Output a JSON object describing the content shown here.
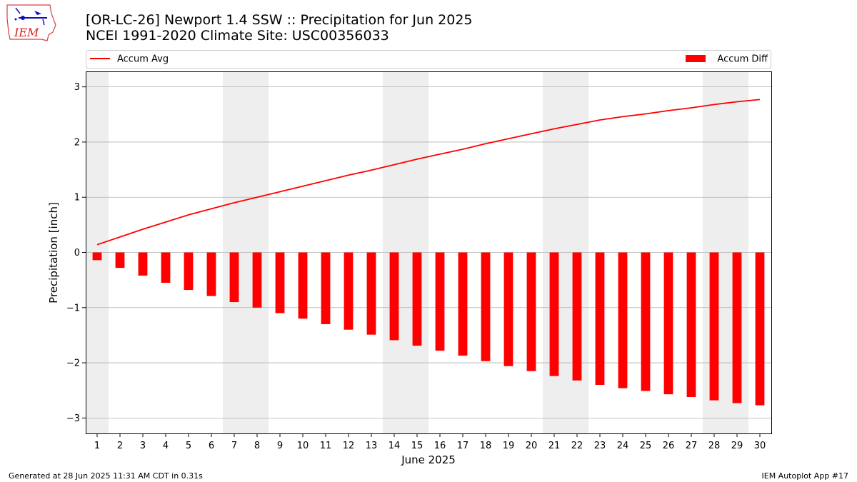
{
  "header": {
    "title_line1": "[OR-LC-26] Newport 1.4 SSW :: Precipitation for Jun 2025",
    "title_line2": "NCEI 1991-2020 Climate Site: USC00356033"
  },
  "logo": {
    "text": "IEM",
    "icon": "iem-iowa-state-logo"
  },
  "footer": {
    "left": "Generated at 28 Jun 2025 11:31 AM CDT in 0.31s",
    "right": "IEM Autoplot App #17"
  },
  "colors": {
    "series": "#ff0000",
    "weekend_band": "#eeeeee",
    "grid": "#b0b0b0"
  },
  "chart_data": {
    "type": "bar",
    "xlabel": "June 2025",
    "ylabel": "Precipitation [inch]",
    "ylim": [
      -3.28,
      3.28
    ],
    "yticks": [
      3,
      2,
      1,
      0,
      -1,
      -2,
      -3
    ],
    "ytick_labels": [
      "3",
      "2",
      "1",
      "0",
      "−1",
      "−2",
      "−3"
    ],
    "grid": "horizontal",
    "legend": [
      {
        "label": "Accum Avg",
        "kind": "line",
        "position": "top-left"
      },
      {
        "label": "Accum Diff",
        "kind": "bar",
        "position": "top-right"
      }
    ],
    "categories": [
      "1",
      "2",
      "3",
      "4",
      "5",
      "6",
      "7",
      "8",
      "9",
      "10",
      "11",
      "12",
      "13",
      "14",
      "15",
      "16",
      "17",
      "18",
      "19",
      "20",
      "21",
      "22",
      "23",
      "24",
      "25",
      "26",
      "27",
      "28",
      "29",
      "30"
    ],
    "weekend_days": [
      1,
      7,
      8,
      14,
      15,
      21,
      22,
      28,
      29
    ],
    "series": [
      {
        "name": "Accum Avg",
        "type": "line",
        "values": [
          0.14,
          0.28,
          0.42,
          0.55,
          0.68,
          0.79,
          0.9,
          1.0,
          1.1,
          1.2,
          1.3,
          1.4,
          1.49,
          1.59,
          1.69,
          1.78,
          1.87,
          1.97,
          2.06,
          2.15,
          2.24,
          2.32,
          2.4,
          2.46,
          2.51,
          2.57,
          2.62,
          2.68,
          2.73,
          2.77
        ]
      },
      {
        "name": "Accum Diff",
        "type": "bar",
        "values": [
          -0.14,
          -0.28,
          -0.42,
          -0.55,
          -0.68,
          -0.79,
          -0.9,
          -1.0,
          -1.1,
          -1.2,
          -1.3,
          -1.4,
          -1.49,
          -1.59,
          -1.69,
          -1.78,
          -1.87,
          -1.97,
          -2.06,
          -2.15,
          -2.24,
          -2.32,
          -2.4,
          -2.46,
          -2.51,
          -2.57,
          -2.62,
          -2.68,
          -2.73,
          -2.77
        ]
      }
    ]
  }
}
